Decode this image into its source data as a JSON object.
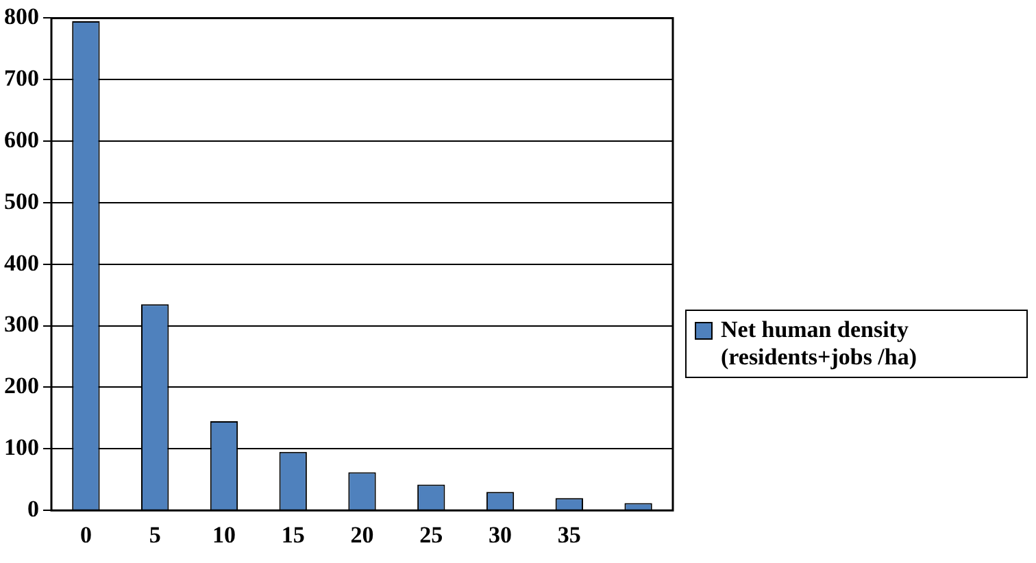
{
  "chart_data": {
    "type": "bar",
    "categories": [
      "0",
      "5",
      "10",
      "15",
      "20",
      "25",
      "30",
      "35",
      null
    ],
    "series": [
      {
        "name": "Net human density (residents+jobs /ha)",
        "color": "#4f81bd",
        "values": [
          795,
          335,
          145,
          95,
          62,
          42,
          30,
          20,
          12
        ]
      }
    ],
    "ylim": [
      0,
      800
    ],
    "yticks": [
      0,
      100,
      200,
      300,
      400,
      500,
      600,
      700,
      800
    ],
    "grid": "y",
    "legend": "right"
  }
}
